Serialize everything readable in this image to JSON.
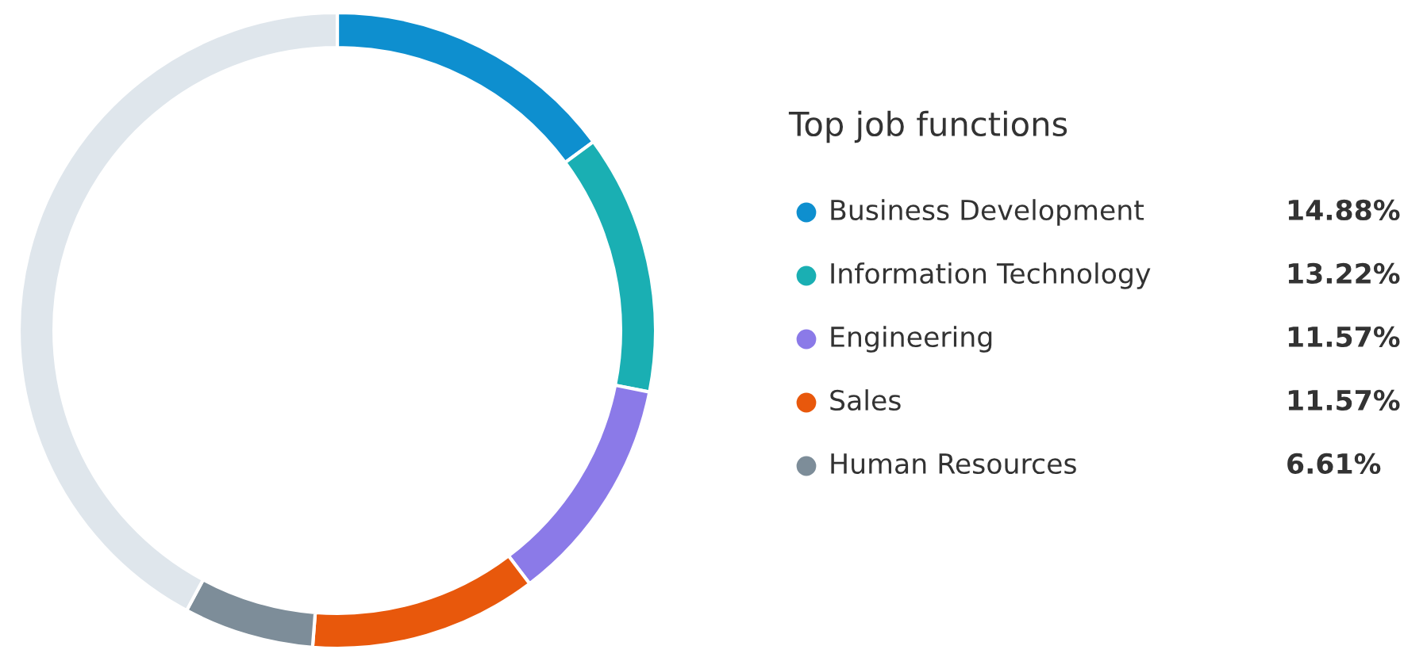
{
  "chart_data": {
    "type": "donut",
    "title": "Top job functions",
    "categories": [
      "Business Development",
      "Information Technology",
      "Engineering",
      "Sales",
      "Human Resources",
      null
    ],
    "values": [
      14.88,
      13.22,
      11.57,
      11.57,
      6.61,
      42.15
    ],
    "colors": [
      "#0e8fcf",
      "#1aafb3",
      "#8b7ae8",
      "#e8580c",
      "#7d8d99",
      "#dfe6ec"
    ],
    "value_labels": [
      "14.88%",
      "13.22%",
      "11.57%",
      "11.57%",
      "6.61%",
      null
    ],
    "legend": "right"
  }
}
